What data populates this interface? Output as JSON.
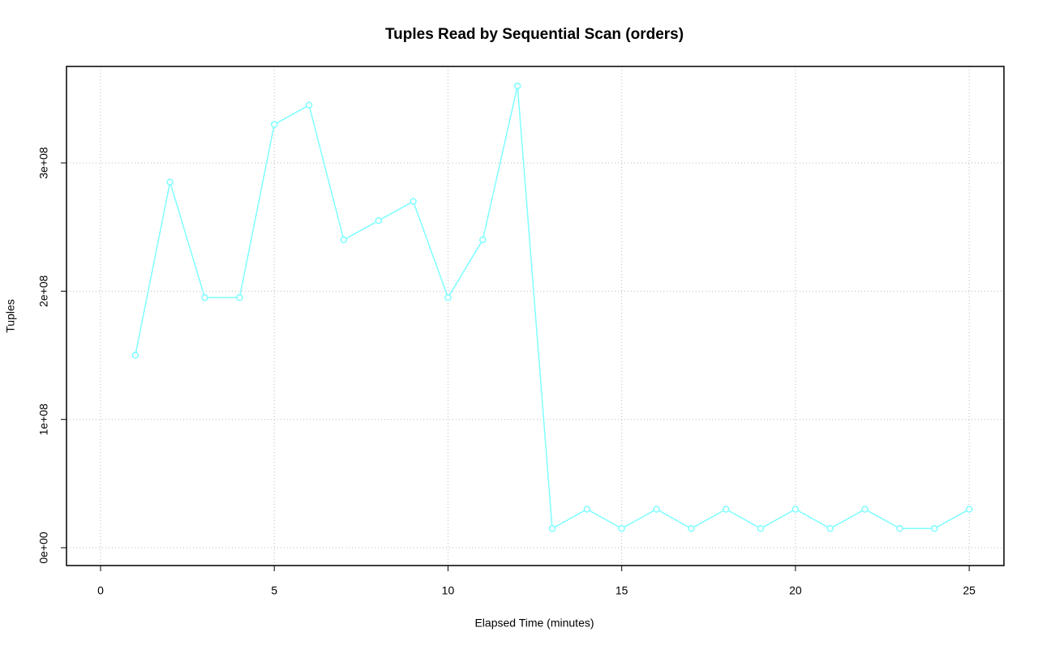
{
  "chart_data": {
    "type": "line",
    "title": "Tuples Read by Sequential Scan (orders)",
    "x_label": "Elapsed Time (minutes)",
    "y_label": "Tuples",
    "x": [
      1,
      2,
      3,
      4,
      5,
      6,
      7,
      8,
      9,
      10,
      11,
      12,
      13,
      14,
      15,
      16,
      17,
      18,
      19,
      20,
      21,
      22,
      23,
      24,
      25
    ],
    "series": [
      {
        "name": "orders",
        "color": "#7fffff",
        "values": [
          150000000,
          285000000,
          195000000,
          195000000,
          330000000,
          345000000,
          240000000,
          255000000,
          270000000,
          195000000,
          240000000,
          360000000,
          15000000,
          30000000,
          15000000,
          30000000,
          15000000,
          30000000,
          15000000,
          30000000,
          15000000,
          30000000,
          15000000,
          15000000,
          30000000
        ]
      }
    ],
    "xlim": [
      -0.98,
      26
    ],
    "ylim": [
      -13900000,
      375200000
    ],
    "xticks": [
      0,
      5,
      10,
      15,
      20,
      25
    ],
    "yticks": [
      {
        "value": 0,
        "label": "0e+00"
      },
      {
        "value": 100000000,
        "label": "1e+08"
      },
      {
        "value": 200000000,
        "label": "2e+08"
      },
      {
        "value": 300000000,
        "label": "3e+08"
      }
    ],
    "grid": true
  }
}
